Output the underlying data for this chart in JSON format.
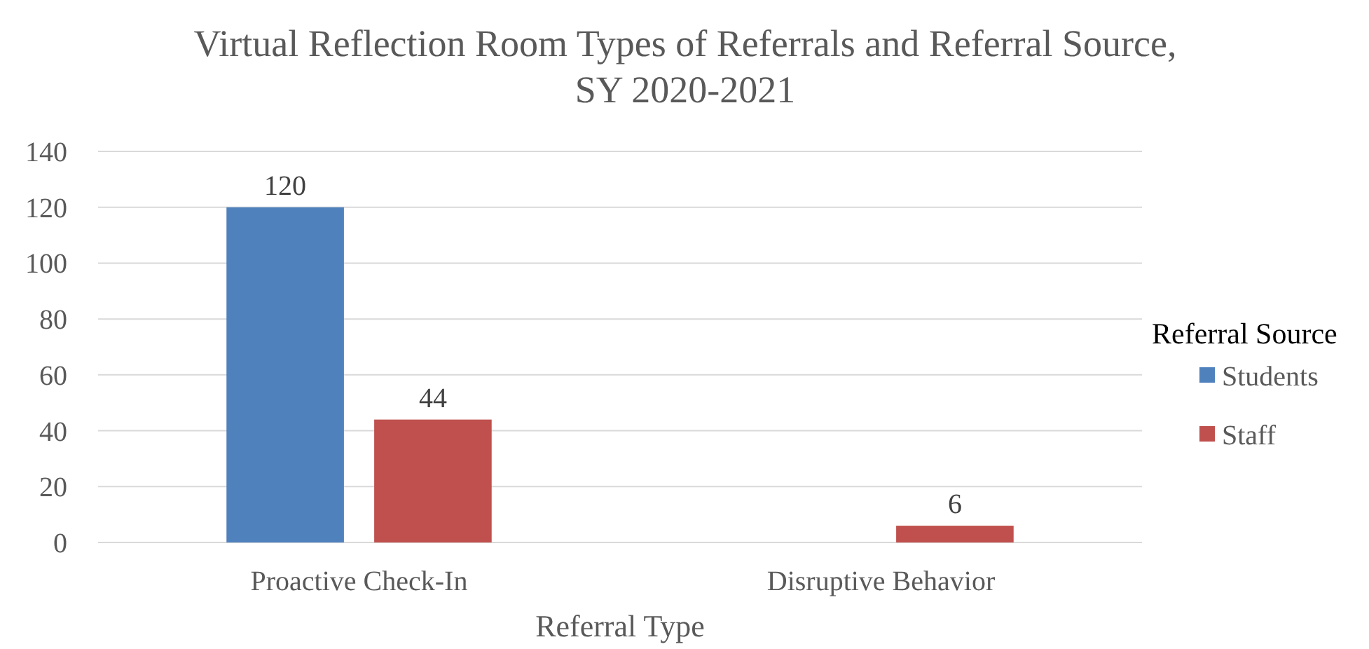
{
  "chart_data": {
    "type": "bar",
    "title": "Virtual Reflection Room Types of Referrals and Referral Source, SY 2020-2021",
    "xlabel": "Referral Type",
    "legend_title": "Referral Source",
    "categories": [
      "Proactive Check-In",
      "Disruptive Behavior"
    ],
    "series": [
      {
        "name": "Students",
        "color": "#4f81bd",
        "values": [
          120,
          null
        ]
      },
      {
        "name": "Staff",
        "color": "#c0504d",
        "values": [
          44,
          6
        ]
      }
    ],
    "ylim": [
      0,
      140
    ],
    "yticks": [
      0,
      20,
      40,
      60,
      80,
      100,
      120,
      140
    ],
    "grid": "y",
    "legend": "right",
    "data_labels": true
  }
}
